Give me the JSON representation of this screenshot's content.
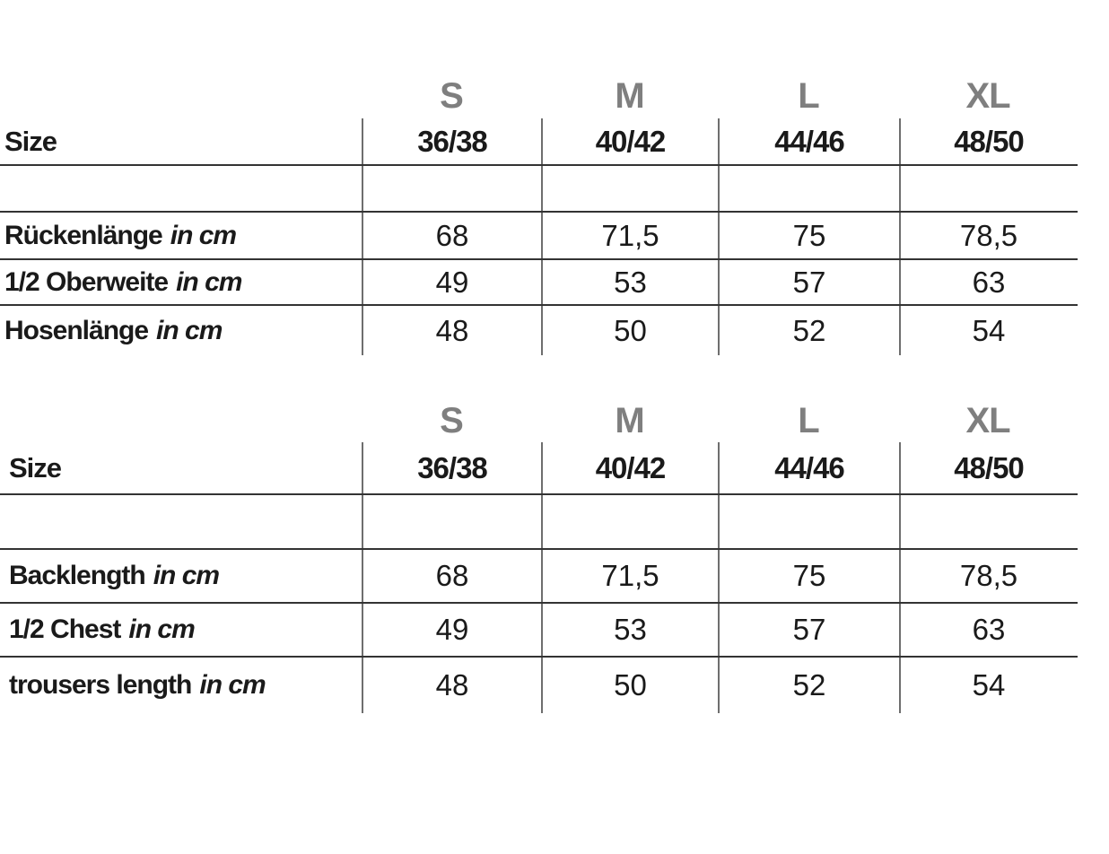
{
  "page": {
    "background": "#ffffff"
  },
  "colors": {
    "header_gray": "#7f7f7f",
    "text_black": "#1a1a1a",
    "horizontal_line": "#333333",
    "vertical_line": "#6e6e6e"
  },
  "tables": [
    {
      "language": "german",
      "size_row_label": "Size",
      "column_headers": [
        "S",
        "M",
        "L",
        "XL"
      ],
      "size_values": [
        "36/38",
        "40/42",
        "44/46",
        "48/50"
      ],
      "rows": [
        {
          "label": "Rückenlänge",
          "unit": "in cm",
          "values": [
            "68",
            "71,5",
            "75",
            "78,5"
          ]
        },
        {
          "label": "1/2 Oberweite",
          "unit": "in cm",
          "values": [
            "49",
            "53",
            "57",
            "63"
          ]
        },
        {
          "label": "Hosenlänge",
          "unit": "in cm",
          "values": [
            "48",
            "50",
            "52",
            "54"
          ]
        }
      ]
    },
    {
      "language": "english",
      "size_row_label": "Size",
      "column_headers": [
        "S",
        "M",
        "L",
        "XL"
      ],
      "size_values": [
        "36/38",
        "40/42",
        "44/46",
        "48/50"
      ],
      "rows": [
        {
          "label": "Backlength",
          "unit": "in cm",
          "values": [
            "68",
            "71,5",
            "75",
            "78,5"
          ]
        },
        {
          "label": "1/2 Chest",
          "unit": "in cm",
          "values": [
            "49",
            "53",
            "57",
            "63"
          ]
        },
        {
          "label": "trousers length",
          "unit": "in cm",
          "values": [
            "48",
            "50",
            "52",
            "54"
          ]
        }
      ]
    }
  ]
}
